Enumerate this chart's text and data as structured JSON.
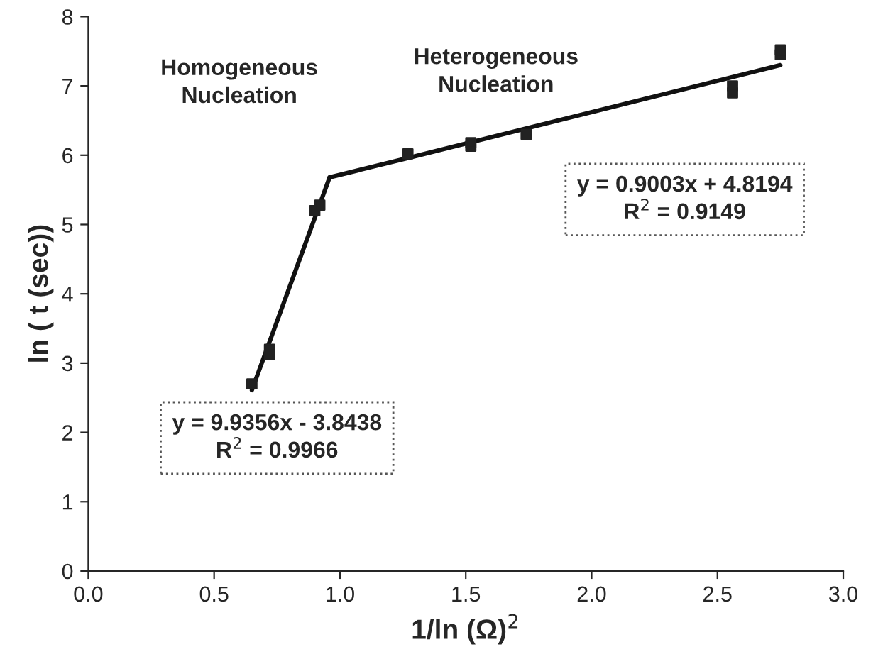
{
  "chart_data": {
    "type": "scatter",
    "xlabel": "1/ln (Ω)$^{2}$",
    "ylabel": "ln ( t (sec))",
    "xlim": [
      0.0,
      3.0
    ],
    "xticks": [
      {
        "value": 0,
        "label": "0.0"
      },
      0.5,
      {
        "value": 1,
        "label": "1.0"
      },
      1.5,
      {
        "value": 2,
        "label": "2.0"
      },
      2.5,
      {
        "value": 3,
        "label": "3.0"
      }
    ],
    "ylim": [
      0,
      8
    ],
    "yticks": [
      0,
      1,
      2,
      3,
      4,
      5,
      6,
      7,
      8
    ],
    "grid": false,
    "legend": false,
    "marker": "square",
    "series": [
      {
        "color": "#222222",
        "x": [
          0.65,
          0.72,
          0.72,
          0.9,
          0.92,
          1.27,
          1.52,
          1.52,
          1.74,
          2.56,
          2.56,
          2.75,
          2.75
        ],
        "values": [
          2.7,
          3.2,
          3.12,
          5.2,
          5.28,
          6.02,
          6.13,
          6.18,
          6.3,
          6.9,
          7.0,
          7.45,
          7.52
        ]
      },
      {
        "type": "line",
        "color": "#111111",
        "marker": "none",
        "x": [
          0.65,
          0.9588
        ],
        "values": [
          2.61,
          5.68
        ]
      },
      {
        "type": "line",
        "color": "#111111",
        "marker": "none",
        "x": [
          0.9588,
          1.27,
          2.75
        ],
        "values": [
          5.68,
          5.96,
          7.3
        ]
      }
    ],
    "annotations": [
      "Homogeneous\nNucleation",
      "Heterogeneous\nNucleation",
      "y = 0.9003x + 4.8194\nR$^{2}$ = 0.9149",
      "y = 9.9356x - 3.8438\nR$^{2}$ = 0.9966"
    ]
  }
}
